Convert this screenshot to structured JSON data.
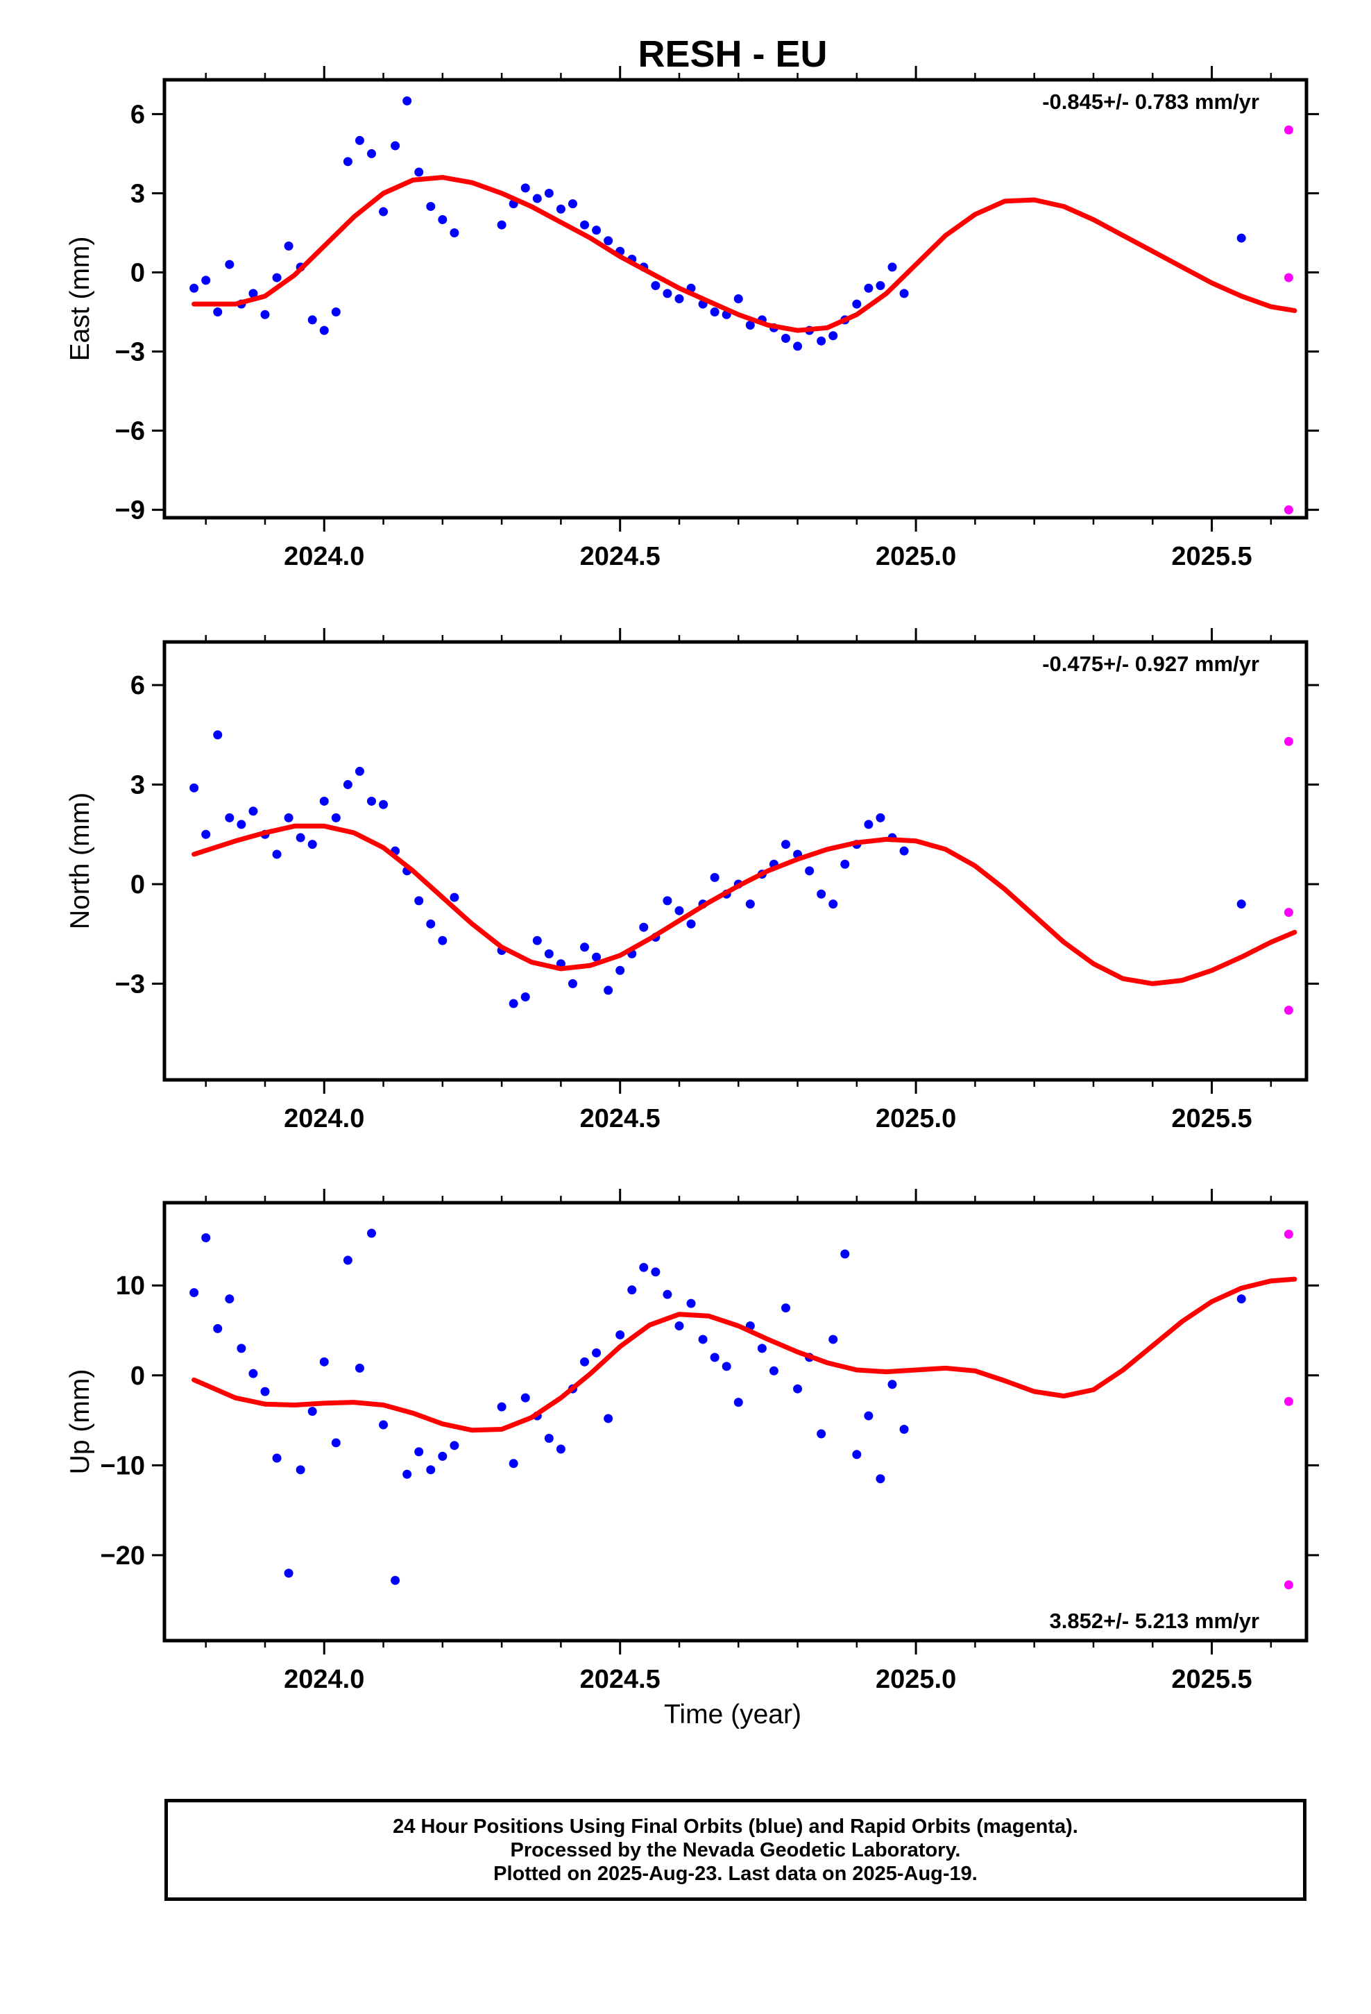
{
  "title": "RESH - EU",
  "xlabel": "Time (year)",
  "colors": {
    "final_orbits": "#0000ff",
    "rapid_orbits": "#ff00ff",
    "model": "#ff0000",
    "frame": "#000000"
  },
  "caption": [
    "24 Hour Positions Using Final Orbits (blue) and Rapid Orbits (magenta).",
    "Processed by the Nevada Geodetic Laboratory.",
    "Plotted on 2025-Aug-23. Last data on 2025-Aug-19."
  ],
  "chart_data": [
    {
      "type": "scatter",
      "component": "East",
      "ylabel": "East (mm)",
      "rate_label": "-0.845+/- 0.783 mm/yr",
      "xlim": [
        2023.73,
        2025.66
      ],
      "ylim": [
        -9.3,
        7.3
      ],
      "xticks": [
        2024.0,
        2024.5,
        2025.0,
        2025.5
      ],
      "xtick_labels": [
        "2024.0",
        "2024.5",
        "2025.0",
        "2025.5"
      ],
      "yticks": [
        6,
        3,
        0,
        -3,
        -6,
        -9
      ],
      "ytick_labels": [
        "6",
        "3",
        "0",
        "−3",
        "−6",
        "−9"
      ],
      "final_orbits": {
        "x": [
          2023.78,
          2023.8,
          2023.82,
          2023.84,
          2023.86,
          2023.88,
          2023.9,
          2023.92,
          2023.94,
          2023.96,
          2023.98,
          2024.0,
          2024.02,
          2024.04,
          2024.06,
          2024.08,
          2024.1,
          2024.12,
          2024.14,
          2024.16,
          2024.18,
          2024.2,
          2024.22,
          2024.3,
          2024.32,
          2024.34,
          2024.36,
          2024.38,
          2024.4,
          2024.42,
          2024.44,
          2024.46,
          2024.48,
          2024.5,
          2024.52,
          2024.54,
          2024.56,
          2024.58,
          2024.6,
          2024.62,
          2024.64,
          2024.66,
          2024.68,
          2024.7,
          2024.72,
          2024.74,
          2024.76,
          2024.78,
          2024.8,
          2024.82,
          2024.84,
          2024.86,
          2024.88,
          2024.9,
          2024.92,
          2024.94,
          2024.96,
          2024.98,
          2025.55
        ],
        "y": [
          -0.6,
          -0.3,
          -1.5,
          0.3,
          -1.2,
          -0.8,
          -1.6,
          -0.2,
          1.0,
          0.2,
          -1.8,
          -2.2,
          -1.5,
          4.2,
          5.0,
          4.5,
          2.3,
          4.8,
          6.5,
          3.8,
          2.5,
          2.0,
          1.5,
          1.8,
          2.6,
          3.2,
          2.8,
          3.0,
          2.4,
          2.6,
          1.8,
          1.6,
          1.2,
          0.8,
          0.5,
          0.2,
          -0.5,
          -0.8,
          -1.0,
          -0.6,
          -1.2,
          -1.5,
          -1.6,
          -1.0,
          -2.0,
          -1.8,
          -2.1,
          -2.5,
          -2.8,
          -2.2,
          -2.6,
          -2.4,
          -1.8,
          -1.2,
          -0.6,
          -0.5,
          0.2,
          -0.8,
          1.3
        ]
      },
      "rapid_orbits": {
        "x": [
          2025.63,
          2025.63,
          2025.63
        ],
        "y": [
          5.4,
          -0.2,
          -9.0
        ]
      },
      "model": {
        "x": [
          2023.78,
          2023.85,
          2023.9,
          2023.95,
          2024.0,
          2024.05,
          2024.1,
          2024.15,
          2024.2,
          2024.25,
          2024.3,
          2024.35,
          2024.4,
          2024.45,
          2024.5,
          2024.55,
          2024.6,
          2024.65,
          2024.7,
          2024.75,
          2024.8,
          2024.85,
          2024.9,
          2024.95,
          2025.0,
          2025.05,
          2025.1,
          2025.15,
          2025.2,
          2025.25,
          2025.3,
          2025.35,
          2025.4,
          2025.45,
          2025.5,
          2025.55,
          2025.6,
          2025.64
        ],
        "y": [
          -1.2,
          -1.2,
          -0.9,
          -0.1,
          1.0,
          2.1,
          3.0,
          3.5,
          3.6,
          3.4,
          3.0,
          2.5,
          1.9,
          1.3,
          0.6,
          0.0,
          -0.6,
          -1.1,
          -1.6,
          -2.0,
          -2.2,
          -2.1,
          -1.6,
          -0.8,
          0.3,
          1.4,
          2.2,
          2.7,
          2.75,
          2.5,
          2.0,
          1.4,
          0.8,
          0.2,
          -0.4,
          -0.9,
          -1.3,
          -1.45
        ]
      }
    },
    {
      "type": "scatter",
      "component": "North",
      "ylabel": "North (mm)",
      "rate_label": "-0.475+/- 0.927 mm/yr",
      "xlim": [
        2023.73,
        2025.66
      ],
      "ylim": [
        -5.9,
        7.3
      ],
      "xticks": [
        2024.0,
        2024.5,
        2025.0,
        2025.5
      ],
      "xtick_labels": [
        "2024.0",
        "2024.5",
        "2025.0",
        "2025.5"
      ],
      "yticks": [
        6,
        3,
        0,
        -3
      ],
      "ytick_labels": [
        "6",
        "3",
        "0",
        "−3"
      ],
      "final_orbits": {
        "x": [
          2023.78,
          2023.8,
          2023.82,
          2023.84,
          2023.86,
          2023.88,
          2023.9,
          2023.92,
          2023.94,
          2023.96,
          2023.98,
          2024.0,
          2024.02,
          2024.04,
          2024.06,
          2024.08,
          2024.1,
          2024.12,
          2024.14,
          2024.16,
          2024.18,
          2024.2,
          2024.22,
          2024.3,
          2024.32,
          2024.34,
          2024.36,
          2024.38,
          2024.4,
          2024.42,
          2024.44,
          2024.46,
          2024.48,
          2024.5,
          2024.52,
          2024.54,
          2024.56,
          2024.58,
          2024.6,
          2024.62,
          2024.64,
          2024.66,
          2024.68,
          2024.7,
          2024.72,
          2024.74,
          2024.76,
          2024.78,
          2024.8,
          2024.82,
          2024.84,
          2024.86,
          2024.88,
          2024.9,
          2024.92,
          2024.94,
          2024.96,
          2024.98,
          2025.55
        ],
        "y": [
          2.9,
          1.5,
          4.5,
          2.0,
          1.8,
          2.2,
          1.5,
          0.9,
          2.0,
          1.4,
          1.2,
          2.5,
          2.0,
          3.0,
          3.4,
          2.5,
          2.4,
          1.0,
          0.4,
          -0.5,
          -1.2,
          -1.7,
          -0.4,
          -2.0,
          -3.6,
          -3.4,
          -1.7,
          -2.1,
          -2.4,
          -3.0,
          -1.9,
          -2.2,
          -3.2,
          -2.6,
          -2.1,
          -1.3,
          -1.6,
          -0.5,
          -0.8,
          -1.2,
          -0.6,
          0.2,
          -0.3,
          0.0,
          -0.6,
          0.3,
          0.6,
          1.2,
          0.9,
          0.4,
          -0.3,
          -0.6,
          0.6,
          1.2,
          1.8,
          2.0,
          1.4,
          1.0,
          -0.6
        ]
      },
      "rapid_orbits": {
        "x": [
          2025.63,
          2025.63,
          2025.63
        ],
        "y": [
          4.3,
          -0.85,
          -3.8
        ]
      },
      "model": {
        "x": [
          2023.78,
          2023.85,
          2023.9,
          2023.95,
          2024.0,
          2024.05,
          2024.1,
          2024.15,
          2024.2,
          2024.25,
          2024.3,
          2024.35,
          2024.4,
          2024.45,
          2024.5,
          2024.55,
          2024.6,
          2024.65,
          2024.7,
          2024.75,
          2024.8,
          2024.85,
          2024.9,
          2024.95,
          2025.0,
          2025.05,
          2025.1,
          2025.15,
          2025.2,
          2025.25,
          2025.3,
          2025.35,
          2025.4,
          2025.45,
          2025.5,
          2025.55,
          2025.6,
          2025.64
        ],
        "y": [
          0.9,
          1.3,
          1.55,
          1.75,
          1.75,
          1.55,
          1.1,
          0.4,
          -0.4,
          -1.2,
          -1.9,
          -2.35,
          -2.55,
          -2.45,
          -2.15,
          -1.65,
          -1.1,
          -0.55,
          -0.05,
          0.4,
          0.75,
          1.05,
          1.25,
          1.35,
          1.3,
          1.05,
          0.55,
          -0.15,
          -0.95,
          -1.75,
          -2.4,
          -2.85,
          -3.0,
          -2.9,
          -2.6,
          -2.2,
          -1.75,
          -1.45
        ]
      }
    },
    {
      "type": "scatter",
      "component": "Up",
      "ylabel": "Up (mm)",
      "rate_label": "3.852+/- 5.213 mm/yr",
      "xlim": [
        2023.73,
        2025.66
      ],
      "ylim": [
        -29.5,
        19.2
      ],
      "xticks": [
        2024.0,
        2024.5,
        2025.0,
        2025.5
      ],
      "xtick_labels": [
        "2024.0",
        "2024.5",
        "2025.0",
        "2025.5"
      ],
      "yticks": [
        10,
        0,
        -10,
        -20
      ],
      "ytick_labels": [
        "10",
        "0",
        "−10",
        "−20"
      ],
      "final_orbits": {
        "x": [
          2023.78,
          2023.8,
          2023.82,
          2023.84,
          2023.86,
          2023.88,
          2023.9,
          2023.92,
          2023.94,
          2023.96,
          2023.98,
          2024.0,
          2024.02,
          2024.04,
          2024.06,
          2024.08,
          2024.1,
          2024.12,
          2024.14,
          2024.16,
          2024.18,
          2024.2,
          2024.22,
          2024.3,
          2024.32,
          2024.34,
          2024.36,
          2024.38,
          2024.4,
          2024.42,
          2024.44,
          2024.46,
          2024.48,
          2024.5,
          2024.52,
          2024.54,
          2024.56,
          2024.58,
          2024.6,
          2024.62,
          2024.64,
          2024.66,
          2024.68,
          2024.7,
          2024.72,
          2024.74,
          2024.76,
          2024.78,
          2024.8,
          2024.82,
          2024.84,
          2024.86,
          2024.88,
          2024.9,
          2024.92,
          2024.94,
          2024.96,
          2024.98,
          2025.55
        ],
        "y": [
          9.2,
          15.3,
          5.2,
          8.5,
          3.0,
          0.2,
          -1.8,
          -9.2,
          -22.0,
          -10.5,
          -4.0,
          1.5,
          -7.5,
          12.8,
          0.8,
          15.8,
          -5.5,
          -22.8,
          -11.0,
          -8.5,
          -10.5,
          -9.0,
          -7.8,
          -3.5,
          -9.8,
          -2.5,
          -4.5,
          -7.0,
          -8.2,
          -1.5,
          1.5,
          2.5,
          -4.8,
          4.5,
          9.5,
          12.0,
          11.5,
          9.0,
          5.5,
          8.0,
          4.0,
          2.0,
          1.0,
          -3.0,
          5.5,
          3.0,
          0.5,
          7.5,
          -1.5,
          2.0,
          -6.5,
          4.0,
          13.5,
          -8.8,
          -4.5,
          -11.5,
          -1.0,
          -6.0,
          8.5
        ]
      },
      "rapid_orbits": {
        "x": [
          2025.63,
          2025.63,
          2025.63
        ],
        "y": [
          15.7,
          -2.9,
          -23.3
        ]
      },
      "model": {
        "x": [
          2023.78,
          2023.85,
          2023.9,
          2023.95,
          2024.0,
          2024.05,
          2024.1,
          2024.15,
          2024.2,
          2024.25,
          2024.3,
          2024.35,
          2024.4,
          2024.45,
          2024.5,
          2024.55,
          2024.6,
          2024.65,
          2024.7,
          2024.75,
          2024.8,
          2024.85,
          2024.9,
          2024.95,
          2025.0,
          2025.05,
          2025.1,
          2025.15,
          2025.2,
          2025.25,
          2025.3,
          2025.35,
          2025.4,
          2025.45,
          2025.5,
          2025.55,
          2025.6,
          2025.64
        ],
        "y": [
          -0.5,
          -2.5,
          -3.2,
          -3.3,
          -3.1,
          -3.0,
          -3.3,
          -4.2,
          -5.4,
          -6.1,
          -6.0,
          -4.7,
          -2.5,
          0.2,
          3.2,
          5.6,
          6.8,
          6.6,
          5.5,
          4.0,
          2.6,
          1.4,
          0.6,
          0.4,
          0.6,
          0.8,
          0.5,
          -0.6,
          -1.8,
          -2.3,
          -1.6,
          0.6,
          3.3,
          6.0,
          8.2,
          9.7,
          10.5,
          10.7
        ]
      }
    }
  ]
}
